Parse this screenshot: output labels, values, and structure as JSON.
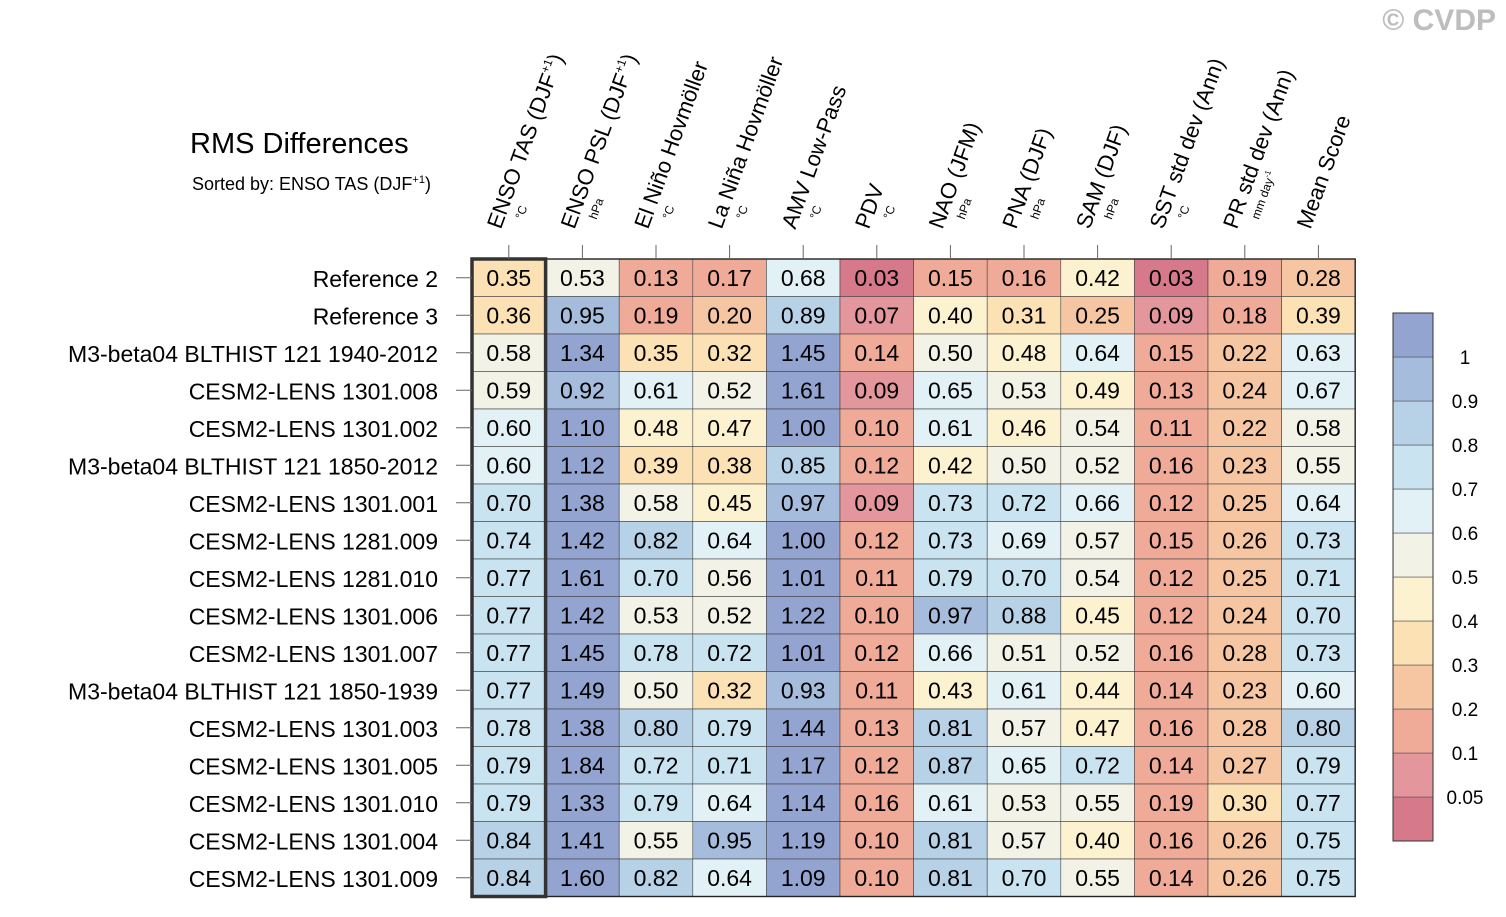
{
  "watermark": "© CVDP",
  "title": "RMS Differences",
  "subtitle": "Sorted by: ENSO TAS (DJF",
  "subtitle_sup": "+1",
  "subtitle_end": ")",
  "chart_data": {
    "type": "heatmap",
    "columns": [
      {
        "label": "ENSO TAS (DJF",
        "sup": "+1",
        "suffix": ")",
        "unit": "°C"
      },
      {
        "label": "ENSO PSL (DJF",
        "sup": "+1",
        "suffix": ")",
        "unit": "hPa"
      },
      {
        "label": "El Niño Hovmöller",
        "unit": "°C"
      },
      {
        "label": "La Niña Hovmöller",
        "unit": "°C"
      },
      {
        "label": "AMV Low-Pass",
        "unit": "°C"
      },
      {
        "label": "PDV",
        "unit": "°C"
      },
      {
        "label": "NAO (JFM)",
        "unit": "hPa"
      },
      {
        "label": "PNA (DJF)",
        "unit": "hPa"
      },
      {
        "label": "SAM (DJF)",
        "unit": "hPa"
      },
      {
        "label": "SST std dev (Ann)",
        "unit": "°C"
      },
      {
        "label": "PR std dev (Ann)",
        "unit": "mm day",
        "unit_sup": "-1"
      },
      {
        "label": "Mean Score",
        "unit": ""
      }
    ],
    "rows": [
      "Reference 2",
      "Reference 3",
      "M3-beta04 BLTHIST 121 1940-2012",
      "CESM2-LENS 1301.008",
      "CESM2-LENS 1301.002",
      "M3-beta04 BLTHIST 121 1850-2012",
      "CESM2-LENS 1301.001",
      "CESM2-LENS 1281.009",
      "CESM2-LENS 1281.010",
      "CESM2-LENS 1301.006",
      "CESM2-LENS 1301.007",
      "M3-beta04 BLTHIST 121 1850-1939",
      "CESM2-LENS 1301.003",
      "CESM2-LENS 1301.005",
      "CESM2-LENS 1301.010",
      "CESM2-LENS 1301.004",
      "CESM2-LENS 1301.009"
    ],
    "values": [
      [
        0.35,
        0.53,
        0.13,
        0.17,
        0.68,
        0.03,
        0.15,
        0.16,
        0.42,
        0.03,
        0.19,
        0.28
      ],
      [
        0.36,
        0.95,
        0.19,
        0.2,
        0.89,
        0.07,
        0.4,
        0.31,
        0.25,
        0.09,
        0.18,
        0.39
      ],
      [
        0.58,
        1.34,
        0.35,
        0.32,
        1.45,
        0.14,
        0.5,
        0.48,
        0.64,
        0.15,
        0.22,
        0.63
      ],
      [
        0.59,
        0.92,
        0.61,
        0.52,
        1.61,
        0.09,
        0.65,
        0.53,
        0.49,
        0.13,
        0.24,
        0.67
      ],
      [
        0.6,
        1.1,
        0.48,
        0.47,
        1.0,
        0.1,
        0.61,
        0.46,
        0.54,
        0.11,
        0.22,
        0.58
      ],
      [
        0.6,
        1.12,
        0.39,
        0.38,
        0.85,
        0.12,
        0.42,
        0.5,
        0.52,
        0.16,
        0.23,
        0.55
      ],
      [
        0.7,
        1.38,
        0.58,
        0.45,
        0.97,
        0.09,
        0.73,
        0.72,
        0.66,
        0.12,
        0.25,
        0.64
      ],
      [
        0.74,
        1.42,
        0.82,
        0.64,
        1.0,
        0.12,
        0.73,
        0.69,
        0.57,
        0.15,
        0.26,
        0.73
      ],
      [
        0.77,
        1.61,
        0.7,
        0.56,
        1.01,
        0.11,
        0.79,
        0.7,
        0.54,
        0.12,
        0.25,
        0.71
      ],
      [
        0.77,
        1.42,
        0.53,
        0.52,
        1.22,
        0.1,
        0.97,
        0.88,
        0.45,
        0.12,
        0.24,
        0.7
      ],
      [
        0.77,
        1.45,
        0.78,
        0.72,
        1.01,
        0.12,
        0.66,
        0.51,
        0.52,
        0.16,
        0.28,
        0.73
      ],
      [
        0.77,
        1.49,
        0.5,
        0.32,
        0.93,
        0.11,
        0.43,
        0.61,
        0.44,
        0.14,
        0.23,
        0.6
      ],
      [
        0.78,
        1.38,
        0.8,
        0.79,
        1.44,
        0.13,
        0.81,
        0.57,
        0.47,
        0.16,
        0.28,
        0.8
      ],
      [
        0.79,
        1.84,
        0.72,
        0.71,
        1.17,
        0.12,
        0.87,
        0.65,
        0.72,
        0.14,
        0.27,
        0.79
      ],
      [
        0.79,
        1.33,
        0.79,
        0.64,
        1.14,
        0.16,
        0.61,
        0.53,
        0.55,
        0.19,
        0.3,
        0.77
      ],
      [
        0.84,
        1.41,
        0.55,
        0.95,
        1.19,
        0.1,
        0.81,
        0.57,
        0.4,
        0.16,
        0.26,
        0.75
      ],
      [
        0.84,
        1.6,
        0.82,
        0.64,
        1.09,
        0.1,
        0.81,
        0.7,
        0.55,
        0.14,
        0.26,
        0.75
      ]
    ],
    "sorted_column": 0,
    "colorbar": {
      "levels": [
        0.05,
        0.1,
        0.2,
        0.3,
        0.4,
        0.5,
        0.6,
        0.7,
        0.8,
        0.9,
        1
      ],
      "labels": [
        "0.05",
        "0.1",
        "0.2",
        "0.3",
        "0.4",
        "0.5",
        "0.6",
        "0.7",
        "0.8",
        "0.9",
        "1"
      ],
      "colors": [
        "#d6798a",
        "#e3969b",
        "#f0aa98",
        "#f6c6a2",
        "#fbe1b4",
        "#fdf2cf",
        "#f2f2e6",
        "#e2f1f6",
        "#c9e3f0",
        "#b7d1e6",
        "#a6bcdc",
        "#93a4d1"
      ]
    }
  }
}
